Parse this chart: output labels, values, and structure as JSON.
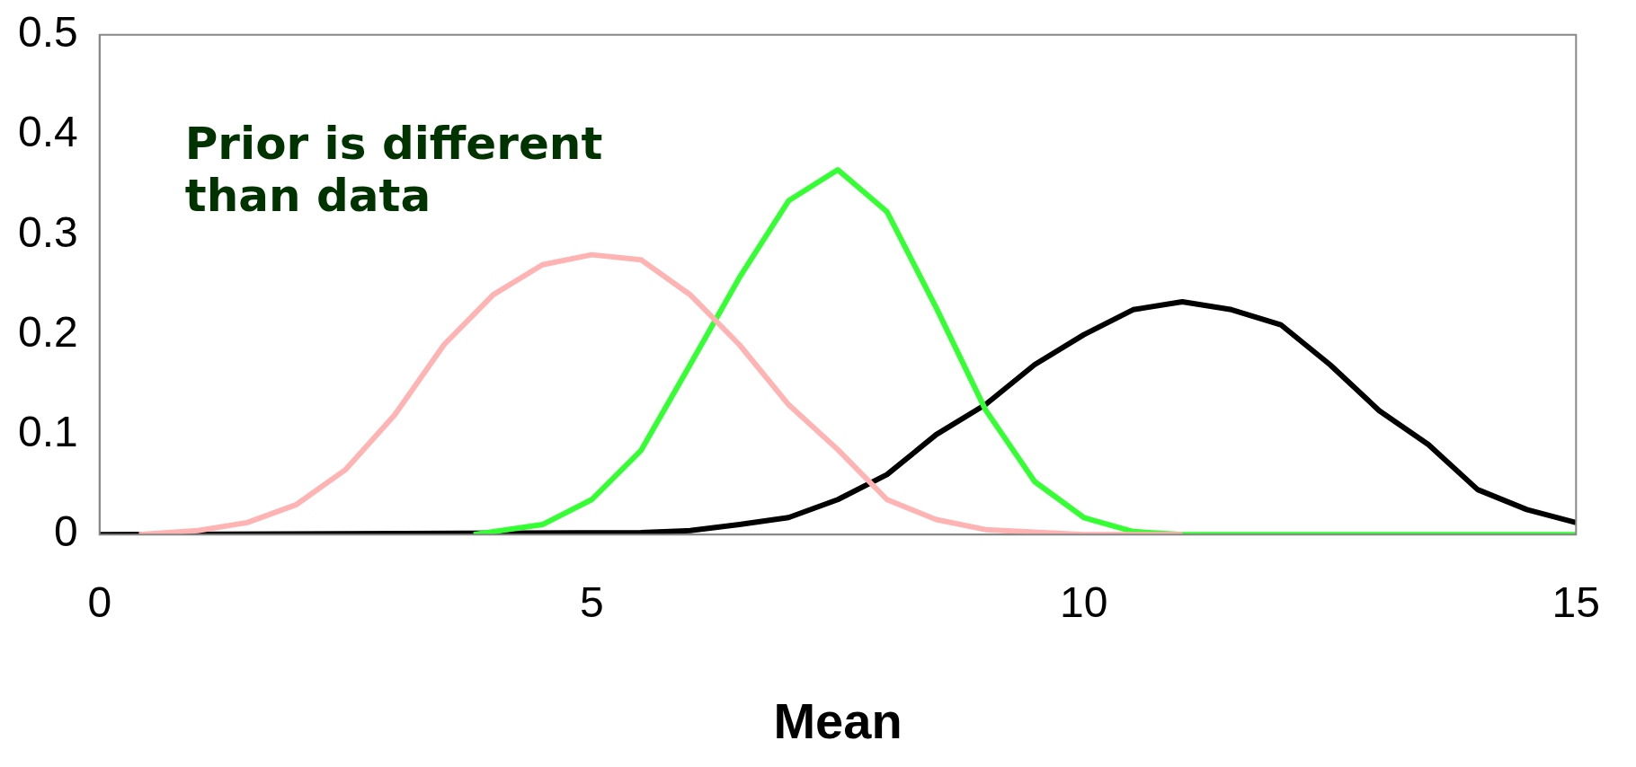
{
  "chart_data": {
    "type": "line",
    "xlabel": "Mean",
    "xlim": [
      0,
      15
    ],
    "xticks": [
      0,
      5,
      10,
      15
    ],
    "ylim": [
      0,
      0.5
    ],
    "yticks": [
      0,
      0.1,
      0.2,
      0.3,
      0.4,
      0.5
    ],
    "grid": false,
    "legend": false,
    "annotations": [
      "Prior is different\nthan data"
    ],
    "series": [
      {
        "color": "#ffb3b3",
        "x": [
          0.4,
          1,
          1.5,
          2,
          2.5,
          3,
          3.5,
          4,
          4.5,
          5,
          5.5,
          6,
          6.5,
          7,
          7.5,
          8,
          8.5,
          9,
          10,
          11
        ],
        "values": [
          0,
          0.004,
          0.012,
          0.03,
          0.065,
          0.12,
          0.19,
          0.24,
          0.27,
          0.28,
          0.275,
          0.24,
          0.19,
          0.13,
          0.085,
          0.035,
          0.015,
          0.005,
          0,
          0
        ]
      },
      {
        "color": "#33ff33",
        "x": [
          3.8,
          4.5,
          5,
          5.5,
          6,
          6.5,
          7,
          7.5,
          8,
          8.5,
          9,
          9.5,
          10,
          10.5,
          11,
          15
        ],
        "values": [
          0,
          0.01,
          0.035,
          0.084,
          0.17,
          0.257,
          0.334,
          0.365,
          0.323,
          0.227,
          0.125,
          0.053,
          0.017,
          0.003,
          0,
          0
        ]
      },
      {
        "color": "#000000",
        "x": [
          0,
          5.5,
          6,
          6.5,
          7,
          7.5,
          8,
          8.5,
          9,
          9.5,
          10,
          10.5,
          11,
          11.5,
          12,
          12.5,
          13,
          13.5,
          14,
          14.5,
          15
        ],
        "values": [
          0,
          0.002,
          0.004,
          0.01,
          0.017,
          0.035,
          0.06,
          0.1,
          0.13,
          0.17,
          0.2,
          0.225,
          0.233,
          0.225,
          0.21,
          0.17,
          0.124,
          0.09,
          0.045,
          0.025,
          0.012
        ]
      }
    ]
  }
}
